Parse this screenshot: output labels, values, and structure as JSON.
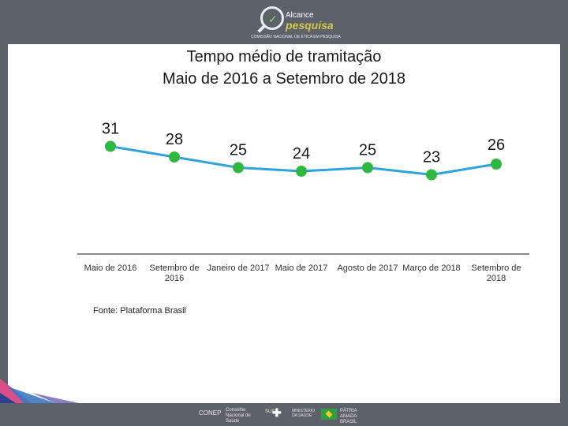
{
  "header": {
    "logo_line1": "Alcance",
    "logo_line2": "pesquisa",
    "logo_sub": "COMISSÃO NACIONAL DE ÉTICA EM PESQUISA"
  },
  "chart_data": {
    "type": "line",
    "title": "Tempo médio de tramitação",
    "subtitle": "Maio de 2016 a Setembro de 2018",
    "categories": [
      "Maio de 2016",
      "Setembro de 2016",
      "Janeiro de 2017",
      "Maio de 2017",
      "Agosto de 2017",
      "Março de 2018",
      "Setembro de 2018"
    ],
    "values": [
      31,
      28,
      25,
      24,
      25,
      23,
      26
    ],
    "data_labels": [
      "31",
      "28",
      "25",
      "24",
      "25",
      "23",
      "26"
    ],
    "line_color": "#2fa3dc",
    "marker_color": "#2eb840",
    "ylim": [
      22,
      32
    ]
  },
  "source": "Fonte: Plataforma Brasil",
  "footer": {
    "logo1": "CONEP",
    "logo2": "Conselho Nacional de Saúde",
    "logo3": "SUS",
    "logo4": "MINISTÉRIO DA SAÚDE",
    "logo5": "PÁTRIA AMADA BRASIL"
  }
}
